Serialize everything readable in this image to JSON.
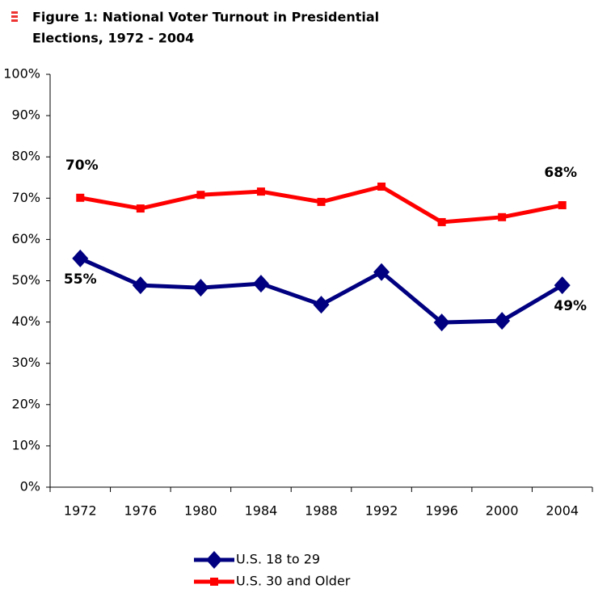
{
  "chart_data": {
    "type": "line",
    "title": [
      "Figure 1: National Voter Turnout in Presidential",
      "Elections, 1972 - 2004"
    ],
    "categories": [
      "1972",
      "1976",
      "1980",
      "1984",
      "1988",
      "1992",
      "1996",
      "2000",
      "2004"
    ],
    "series": [
      {
        "name": "U.S. 18 to 29",
        "color": "#000080",
        "marker": "diamond",
        "values": [
          55.4,
          48.9,
          48.3,
          49.3,
          44.2,
          52.1,
          39.9,
          40.3,
          48.9
        ],
        "value_labels": [
          "55%",
          null,
          null,
          null,
          null,
          null,
          null,
          null,
          "49%"
        ]
      },
      {
        "name": "U.S. 30 and Older",
        "color": "#ff0000",
        "marker": "square",
        "values": [
          70.1,
          67.5,
          70.8,
          71.6,
          69.1,
          72.8,
          64.2,
          65.4,
          68.3
        ],
        "value_labels": [
          "70%",
          null,
          null,
          null,
          null,
          null,
          null,
          null,
          "68%"
        ]
      }
    ],
    "ylim": [
      0,
      100
    ],
    "yticks": [
      {
        "value": 0,
        "label": "0%"
      },
      {
        "value": 10,
        "label": "10%"
      },
      {
        "value": 20,
        "label": "20%"
      },
      {
        "value": 30,
        "label": "30%"
      },
      {
        "value": 40,
        "label": "40%"
      },
      {
        "value": 50,
        "label": "50%"
      },
      {
        "value": 60,
        "label": "60%"
      },
      {
        "value": 70,
        "label": "70%"
      },
      {
        "value": 80,
        "label": "80%"
      },
      {
        "value": 90,
        "label": "90%"
      },
      {
        "value": 100,
        "label": "100%"
      }
    ],
    "grid": false
  }
}
